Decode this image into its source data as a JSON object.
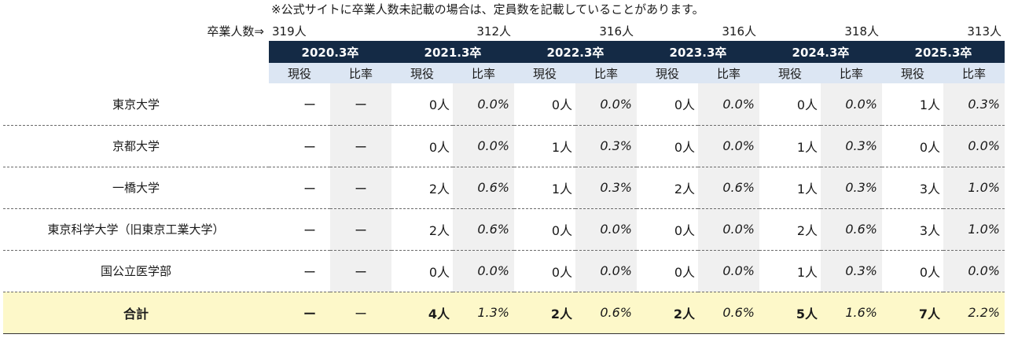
{
  "note": "※公式サイトに卒業人数未記載の場合は、定員数を記載していることがあります。",
  "grad_label": "卒業人数⇒",
  "grad_counts": [
    "319人",
    "312人",
    "316人",
    "316人",
    "318人",
    "313人"
  ],
  "years": [
    "2020.3卒",
    "2021.3卒",
    "2022.3卒",
    "2023.3卒",
    "2024.3卒",
    "2025.3卒"
  ],
  "sub_headers": {
    "current": "現役",
    "ratio": "比率"
  },
  "rows": [
    {
      "name": "東京大学",
      "cells": [
        "ー",
        "ー",
        "0人",
        "0.0%",
        "0人",
        "0.0%",
        "0人",
        "0.0%",
        "0人",
        "0.0%",
        "1人",
        "0.3%"
      ]
    },
    {
      "name": "京都大学",
      "cells": [
        "ー",
        "ー",
        "0人",
        "0.0%",
        "1人",
        "0.3%",
        "0人",
        "0.0%",
        "1人",
        "0.3%",
        "0人",
        "0.0%"
      ]
    },
    {
      "name": "一橋大学",
      "cells": [
        "ー",
        "ー",
        "2人",
        "0.6%",
        "1人",
        "0.3%",
        "2人",
        "0.6%",
        "1人",
        "0.3%",
        "3人",
        "1.0%"
      ]
    },
    {
      "name": "東京科学大学（旧東京工業大学）",
      "cells": [
        "ー",
        "ー",
        "2人",
        "0.6%",
        "0人",
        "0.0%",
        "0人",
        "0.0%",
        "2人",
        "0.6%",
        "3人",
        "1.0%"
      ]
    },
    {
      "name": "国公立医学部",
      "cells": [
        "ー",
        "ー",
        "0人",
        "0.0%",
        "0人",
        "0.0%",
        "0人",
        "0.0%",
        "1人",
        "0.3%",
        "0人",
        "0.0%"
      ]
    }
  ],
  "total": {
    "name": "合計",
    "cells": [
      "ー",
      "ー",
      "4人",
      "1.3%",
      "2人",
      "0.6%",
      "2人",
      "0.6%",
      "5人",
      "1.6%",
      "7人",
      "2.2%"
    ]
  }
}
